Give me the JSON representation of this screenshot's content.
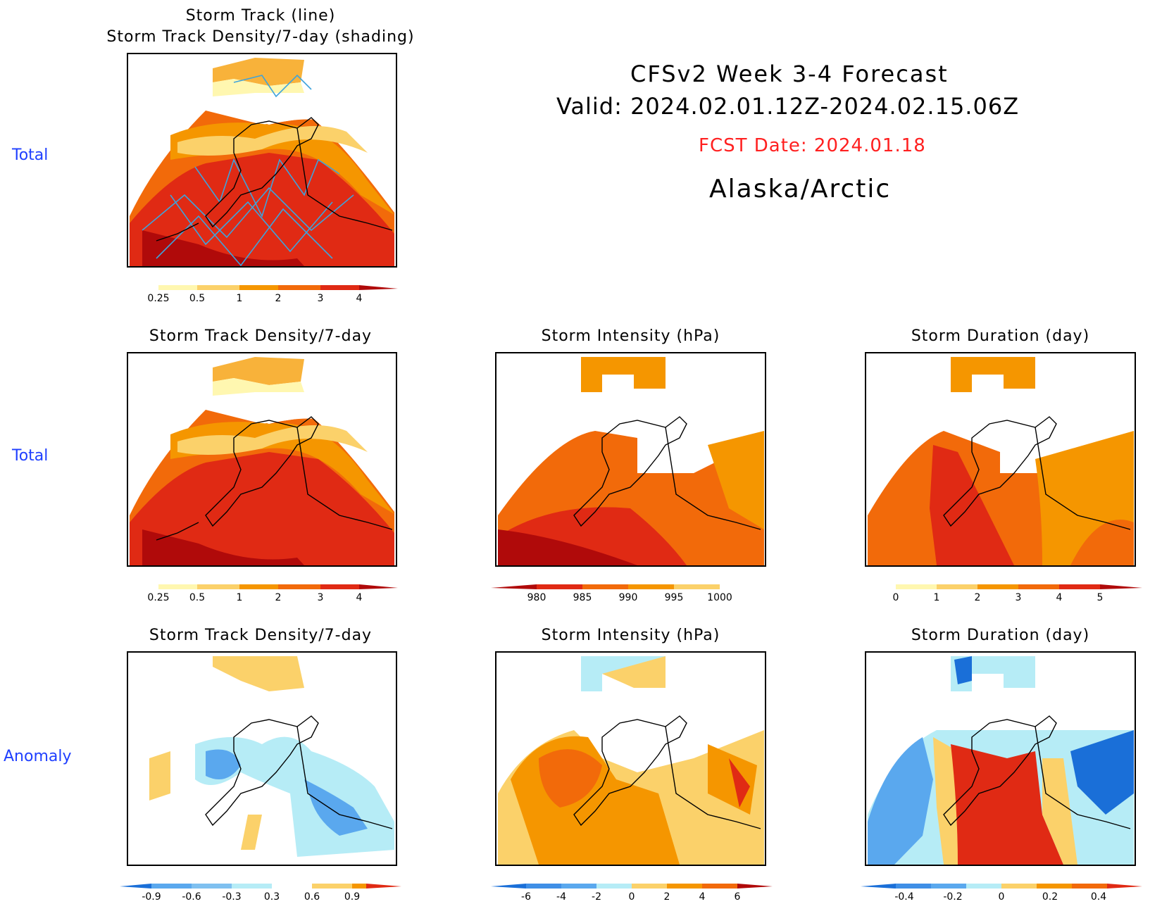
{
  "header": {
    "line1": "CFSv2  Week  3-4  Forecast",
    "line2": "Valid:  2024.02.01.12Z-2024.02.15.06Z",
    "fcst_date": "FCST Date: 2024.01.18",
    "region": "Alaska/Arctic"
  },
  "rows": {
    "r1": "Total",
    "r2": "Total",
    "r3": "Anomaly"
  },
  "panels": {
    "p1": {
      "title1": "Storm  Track  (line)",
      "title2": "Storm  Track  Density/7-day  (shading)"
    },
    "p2": {
      "title": "Storm  Track  Density/7-day"
    },
    "p3": {
      "title": "Storm  Intensity  (hPa)"
    },
    "p4": {
      "title": "Storm  Duration  (day)"
    },
    "p5": {
      "title": "Storm  Track  Density/7-day"
    },
    "p6": {
      "title": "Storm  Intensity  (hPa)"
    },
    "p7": {
      "title": "Storm  Duration  (day)"
    }
  },
  "colors": {
    "pale_yellow": "#fff7b0",
    "yellow": "#fbd16a",
    "light_orange": "#f8b23a",
    "orange": "#f59600",
    "dark_orange": "#f26a0a",
    "red": "#e02a14",
    "dark_red": "#b00a0a",
    "light_blue": "#b6ecf6",
    "mid_blue": "#5aa8ee",
    "blue": "#1a6fd8",
    "track_line": "#3ea3dc"
  },
  "colorbars": {
    "density": {
      "ticks": [
        "0.25",
        "0.5",
        "1",
        "2",
        "3",
        "4"
      ]
    },
    "intensity": {
      "ticks": [
        "980",
        "985",
        "990",
        "995",
        "1000"
      ]
    },
    "duration": {
      "ticks": [
        "0",
        "1",
        "2",
        "3",
        "4",
        "5"
      ]
    },
    "density_anom": {
      "ticks": [
        "-0.9",
        "-0.6",
        "-0.3",
        "0.3",
        "0.6",
        "0.9"
      ]
    },
    "intensity_anom": {
      "ticks": [
        "-6",
        "-4",
        "-2",
        "0",
        "2",
        "4",
        "6"
      ]
    },
    "duration_anom": {
      "ticks": [
        "-0.4",
        "-0.2",
        "0",
        "0.2",
        "0.4"
      ]
    }
  }
}
